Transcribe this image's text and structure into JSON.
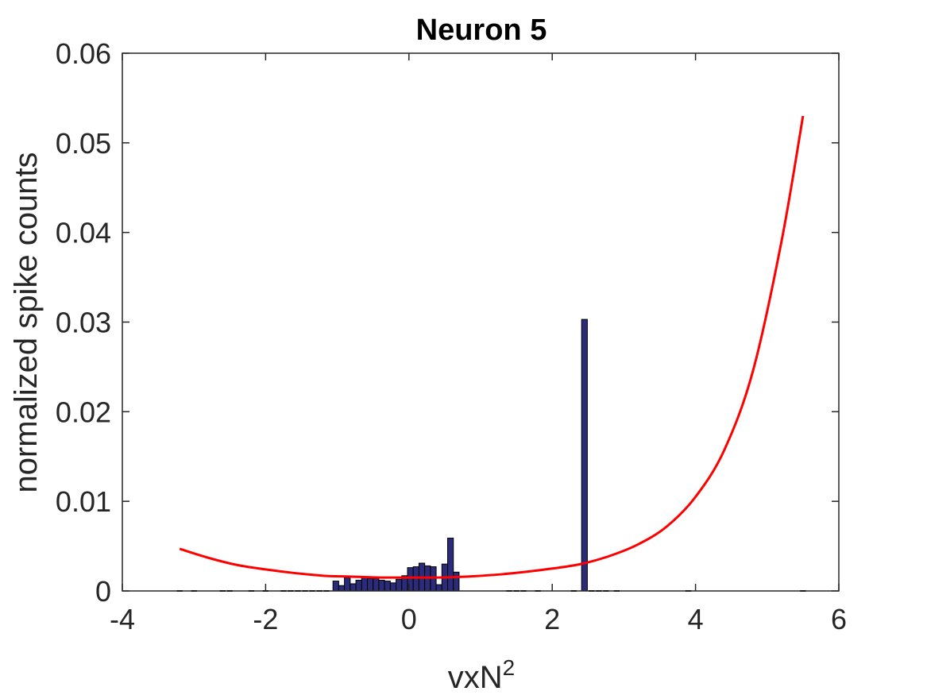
{
  "colors": {
    "bar_fill": "#2b2b7a",
    "bar_edge": "#000000",
    "fit_line": "#ff0000",
    "axes": "#262626"
  },
  "chart_data": {
    "type": "bar",
    "title": "Neuron 5",
    "xlabel_base": "vxN",
    "xlabel_sup": "2",
    "ylabel": "normalized spike counts",
    "xlim": [
      -4,
      6
    ],
    "ylim": [
      0,
      0.06
    ],
    "xticks": [
      -4,
      -2,
      0,
      2,
      4,
      6
    ],
    "xtick_labels": [
      "-4",
      "-2",
      "0",
      "2",
      "4",
      "6"
    ],
    "yticks": [
      0,
      0.01,
      0.02,
      0.03,
      0.04,
      0.05,
      0.06
    ],
    "ytick_labels": [
      "0",
      "0.01",
      "0.02",
      "0.03",
      "0.04",
      "0.05",
      "0.06"
    ],
    "grid": false,
    "box": true,
    "bar_width": 0.08,
    "bars": {
      "x": [
        -1.02,
        -0.94,
        -0.86,
        -0.78,
        -0.7,
        -0.62,
        -0.54,
        -0.46,
        -0.38,
        -0.3,
        -0.22,
        -0.14,
        -0.06,
        0.02,
        0.1,
        0.18,
        0.26,
        0.34,
        0.42,
        0.5,
        0.58,
        0.66,
        0.74,
        0.82,
        0.9,
        0.98,
        1.06,
        1.14,
        1.22,
        2.45
      ],
      "y": [
        0.0011,
        0.0006,
        0.0015,
        0.0008,
        0.0012,
        0.0016,
        0.0014,
        0.0014,
        0.0012,
        0.0011,
        0.0009,
        0.0013,
        0.0017,
        0.0026,
        0.0027,
        0.0031,
        0.0028,
        0.0027,
        0.0007,
        0.003,
        0.0059,
        0.0021,
        0.0,
        0.0,
        0.0,
        0.0,
        0.0,
        0.0,
        0.0,
        0.0303
      ]
    },
    "fit_curve": {
      "name": "",
      "x": [
        -3.2,
        -2.8,
        -2.4,
        -2.0,
        -1.6,
        -1.2,
        -0.8,
        -0.4,
        0.0,
        0.4,
        0.8,
        1.2,
        1.6,
        2.0,
        2.4,
        2.8,
        3.2,
        3.6,
        4.0,
        4.4,
        4.8,
        5.2,
        5.5
      ],
      "y": [
        0.0047,
        0.0037,
        0.0029,
        0.0024,
        0.002,
        0.0017,
        0.0016,
        0.0015,
        0.0015,
        0.0015,
        0.0016,
        0.0018,
        0.0021,
        0.0025,
        0.003,
        0.0039,
        0.0052,
        0.0072,
        0.0105,
        0.0157,
        0.0245,
        0.039,
        0.053
      ]
    }
  }
}
